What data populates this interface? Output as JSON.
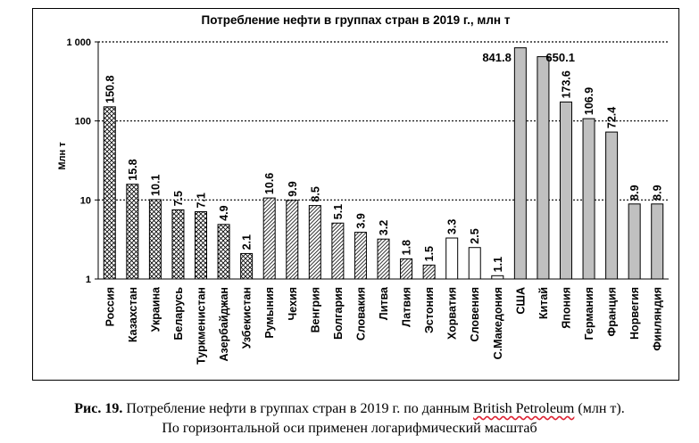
{
  "chart_data": {
    "type": "bar",
    "title": "Потребление нефти в группах стран в 2019 г., млн т",
    "ylabel": "Млн т",
    "xlabel": "",
    "yscale": "log",
    "ylim": [
      1,
      1000
    ],
    "yticks": [
      1,
      10,
      100,
      1000
    ],
    "ytick_labels": [
      "1",
      "10",
      "100",
      "1 000"
    ],
    "grid": "horizontal dotted",
    "categories": [
      "Россия",
      "Казахстан",
      "Украина",
      "Беларусь",
      "Туркменистан",
      "Азербайджан",
      "Узбекистан",
      "Румыния",
      "Чехия",
      "Венгрия",
      "Болгария",
      "Словакия",
      "Литва",
      "Латвия",
      "Эстония",
      "Хорватия",
      "Словения",
      "С.Македония",
      "США",
      "Китай",
      "Япония",
      "Германия",
      "Франция",
      "Норвегия",
      "Финляндия"
    ],
    "values": [
      150.8,
      15.8,
      10.1,
      7.5,
      7.1,
      4.9,
      2.1,
      10.6,
      9.9,
      8.5,
      5.1,
      3.9,
      3.2,
      1.8,
      1.5,
      3.3,
      2.5,
      1.1,
      841.8,
      650.1,
      173.6,
      106.9,
      72.4,
      8.9,
      8.9
    ],
    "value_labels": [
      "150.8",
      "15.8",
      "10.1",
      "7.5",
      "7.1",
      "4.9",
      "2.1",
      "10.6",
      "9.9",
      "8.5",
      "5.1",
      "3.9",
      "3.2",
      "1.8",
      "1.5",
      "3.3",
      "2.5",
      "1.1",
      "841.8",
      "650.1",
      "173.6",
      "106.9",
      "72.4",
      "8.9",
      "8.9"
    ],
    "groups": [
      "crosshatch",
      "crosshatch",
      "crosshatch",
      "crosshatch",
      "crosshatch",
      "crosshatch",
      "crosshatch",
      "hatched",
      "hatched",
      "hatched",
      "hatched",
      "hatched",
      "hatched",
      "hatched",
      "hatched",
      "white",
      "white",
      "white",
      "gray",
      "gray",
      "gray",
      "gray",
      "gray",
      "gray",
      "gray"
    ],
    "colors": {
      "gray": "#c0c0c0",
      "white": "#ffffff",
      "hatch": "#000000",
      "grid": "#000000"
    }
  },
  "caption": {
    "lead": "Рис. 19.",
    "text_before": " Потребление нефти в группах стран в 2019 г. по данным ",
    "source": "British Petroleum",
    "text_after": " (млн т).",
    "line2": "По горизонтальной оси применен логарифмический масштаб"
  }
}
